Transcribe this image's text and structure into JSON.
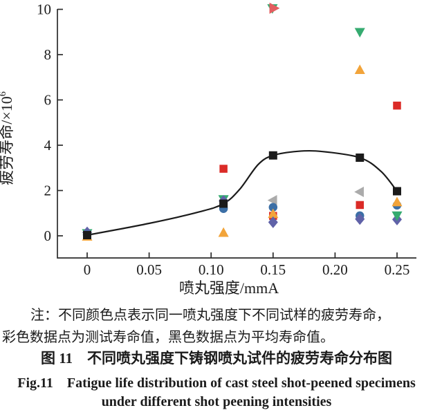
{
  "background": "#ffffff",
  "chart_data": {
    "type": "scatter",
    "title": "",
    "xlabel": "喷丸强度/mmA",
    "ylabel": "疲劳寿命/×10⁶",
    "ylabel_base": "疲劳寿命/×10",
    "ylabel_exp": "6",
    "xlim": [
      -0.024,
      0.266
    ],
    "ylim": [
      -1,
      10
    ],
    "x_ticks": [
      0,
      0.05,
      0.1,
      0.15,
      0.2,
      0.25
    ],
    "x_tick_labels": [
      "0",
      "0.05",
      "0.10",
      "0.15",
      "0.20",
      "0.25"
    ],
    "y_ticks": [
      0,
      2,
      4,
      6,
      8,
      10
    ],
    "y_tick_labels": [
      "0",
      "2",
      "4",
      "6",
      "8",
      "10"
    ],
    "grid": false,
    "legend": "none",
    "axis_color": "#2b2b2b",
    "series_meta": {
      "red": {
        "name": "specimen-red-square",
        "marker": "square",
        "color": "#DB2B27",
        "size": 11.5
      },
      "green": {
        "name": "specimen-green-tri-down",
        "marker": "triangle-down",
        "color": "#35AB70",
        "size": 13
      },
      "orange": {
        "name": "specimen-orange-tri-up",
        "marker": "triangle-up",
        "color": "#F2A43A",
        "size": 13
      },
      "blue": {
        "name": "specimen-blue-circle",
        "marker": "circle",
        "color": "#3C6FA6",
        "size": 12
      },
      "purple": {
        "name": "specimen-purple-diamond",
        "marker": "diamond",
        "color": "#6062A8",
        "size": 12.5
      },
      "gray": {
        "name": "specimen-gray-tri-left",
        "marker": "triangle-left",
        "color": "#ABABAB",
        "size": 13
      },
      "pink": {
        "name": "specimen-pink-tri-right",
        "marker": "triangle-right",
        "color": "#E35E60",
        "size": 14
      },
      "mean": {
        "name": "mean-black-square",
        "marker": "square",
        "color": "#1B1B1B",
        "size": 12
      }
    },
    "points": [
      {
        "s": "red",
        "x": 0,
        "y": 0.07
      },
      {
        "s": "green",
        "x": 0,
        "y": 0.12
      },
      {
        "s": "orange",
        "x": 0,
        "y": -0.04
      },
      {
        "s": "purple",
        "x": 0,
        "y": 0.15
      },
      {
        "s": "blue",
        "x": 0,
        "y": 0.05
      },
      {
        "s": "red",
        "x": 0.11,
        "y": 2.96
      },
      {
        "s": "green",
        "x": 0.11,
        "y": 1.62
      },
      {
        "s": "blue",
        "x": 0.11,
        "y": 1.2
      },
      {
        "s": "purple",
        "x": 0.11,
        "y": 1.54
      },
      {
        "s": "orange",
        "x": 0.11,
        "y": 0.13
      },
      {
        "s": "green",
        "x": 0.1495,
        "y": 10.05
      },
      {
        "s": "pink",
        "x": 0.1505,
        "y": 10.05
      },
      {
        "s": "gray",
        "x": 0.15,
        "y": 1.57
      },
      {
        "s": "blue",
        "x": 0.15,
        "y": 1.26
      },
      {
        "s": "red",
        "x": 0.15,
        "y": 0.88
      },
      {
        "s": "orange",
        "x": 0.15,
        "y": 0.96
      },
      {
        "s": "purple",
        "x": 0.15,
        "y": 0.6
      },
      {
        "s": "green",
        "x": 0.22,
        "y": 9.0
      },
      {
        "s": "orange",
        "x": 0.22,
        "y": 7.32
      },
      {
        "s": "gray",
        "x": 0.22,
        "y": 1.94
      },
      {
        "s": "red",
        "x": 0.22,
        "y": 1.36
      },
      {
        "s": "blue",
        "x": 0.22,
        "y": 0.89
      },
      {
        "s": "purple",
        "x": 0.22,
        "y": 0.74
      },
      {
        "s": "red",
        "x": 0.25,
        "y": 5.75
      },
      {
        "s": "purple",
        "x": 0.25,
        "y": 0.72
      },
      {
        "s": "green",
        "x": 0.25,
        "y": 0.9
      },
      {
        "s": "blue",
        "x": 0.25,
        "y": 1.35
      },
      {
        "s": "orange",
        "x": 0.25,
        "y": 1.48
      }
    ],
    "mean_points": [
      {
        "x": 0,
        "y": 0.03
      },
      {
        "x": 0.11,
        "y": 1.42
      },
      {
        "x": 0.15,
        "y": 3.55
      },
      {
        "x": 0.22,
        "y": 3.45
      },
      {
        "x": 0.25,
        "y": 1.97
      }
    ],
    "mean_curve": [
      [
        0,
        0.03
      ],
      [
        0.05,
        0.55
      ],
      [
        0.09,
        1.05
      ],
      [
        0.11,
        1.42
      ],
      [
        0.123,
        2.05
      ],
      [
        0.138,
        3.15
      ],
      [
        0.15,
        3.55
      ],
      [
        0.17,
        3.73
      ],
      [
        0.19,
        3.72
      ],
      [
        0.22,
        3.45
      ],
      [
        0.237,
        2.85
      ],
      [
        0.25,
        1.97
      ]
    ]
  },
  "note": {
    "line1": "注：不同颜色点表示同一喷丸强度下不同试样的疲劳寿命，",
    "line2": "彩色数据点为测试寿命值，黑色数据点为平均寿命值。"
  },
  "captions": {
    "zh": "图 11　不同喷丸强度下铸钢喷丸试件的疲劳寿命分布图",
    "en1": "Fig.11　Fatigue life distribution of cast steel shot-peened specimens",
    "en2": "under different shot peening intensities"
  }
}
